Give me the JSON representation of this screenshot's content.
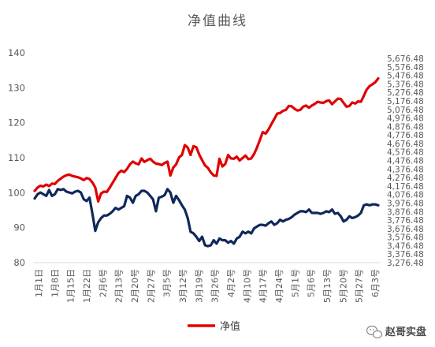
{
  "chart_data": {
    "type": "line",
    "title": "净值曲线",
    "left_axis": {
      "ylim": [
        80,
        140
      ],
      "ticks": [
        80,
        90,
        100,
        110,
        120,
        130,
        140
      ]
    },
    "right_axis": {
      "ylim": [
        3176.48,
        5776.48
      ],
      "ticks": [
        "3,276.48",
        "3,376.48",
        "3,476.48",
        "3,576.48",
        "3,676.48",
        "3,776.48",
        "3,876.48",
        "3,976.48",
        "4,076.48",
        "4,176.48",
        "4,276.48",
        "4,376.48",
        "4,476.48",
        "4,576.48",
        "4,676.48",
        "4,776.48",
        "4,876.48",
        "4,976.48",
        "5,076.48",
        "5,176.48",
        "5,276.48",
        "5,376.48",
        "5,476.48",
        "5,576.48",
        "5,676.48"
      ]
    },
    "x_tick_labels": [
      "1月1日",
      "1月8日",
      "1月15日",
      "1月22日",
      "2月6号",
      "2月13号",
      "2月20号",
      "2月27号",
      "3月5号",
      "3月12号",
      "3月19号",
      "3月26号",
      "4月2号",
      "4月10号",
      "4月17号",
      "4月24号",
      "5月1号",
      "5月6号",
      "5月13号",
      "5月20号",
      "5月27号",
      "6月3号"
    ],
    "grid": false,
    "legend_position": "bottom",
    "series": [
      {
        "name": "净值",
        "axis": "left",
        "color": "#e00000",
        "values": [
          100.5,
          101.5,
          102,
          101.8,
          102.3,
          101.9,
          102.6,
          102.5,
          103.4,
          104,
          104.6,
          105,
          105.2,
          104.8,
          104.6,
          104.4,
          104.1,
          103.6,
          104.2,
          103.9,
          102.9,
          101.5,
          97.5,
          99.8,
          100.3,
          100.2,
          101.5,
          102.8,
          104.2,
          105.6,
          106.3,
          105.9,
          106.8,
          108.1,
          108.9,
          108.4,
          108.1,
          109.8,
          108.8,
          109.3,
          109.7,
          108.9,
          108.3,
          108.2,
          107.9,
          108.5,
          108.9,
          104.9,
          107.2,
          108.1,
          110.1,
          110.8,
          113.6,
          112.9,
          110.8,
          113.3,
          113.0,
          110.9,
          109.3,
          107.8,
          107.1,
          105.8,
          104.9,
          104.8,
          109.7,
          107.5,
          108.2,
          110.8,
          109.8,
          109.7,
          110.3,
          109.2,
          109.9,
          110.6,
          109.6,
          109.8,
          111.1,
          112.9,
          115.1,
          117.3,
          116.9,
          118.1,
          119.6,
          121.1,
          122.6,
          122.8,
          123.4,
          123.7,
          124.8,
          124.7,
          124.0,
          123.5,
          123.7,
          124.6,
          124.9,
          124.3,
          124.9,
          125.4,
          126.0,
          125.8,
          125.7,
          126.2,
          126.4,
          125.3,
          126.1,
          126.9,
          126.8,
          125.7,
          124.6,
          124.8,
          125.8,
          125.5,
          126.1,
          126.0,
          127.7,
          129.5,
          130.5,
          131.0,
          131.6,
          132.7
        ]
      },
      {
        "name": "",
        "axis": "right",
        "color": "#10285a",
        "values": [
          4030,
          4080,
          4100,
          4080,
          4060,
          4130,
          4060,
          4080,
          4140,
          4130,
          4140,
          4110,
          4100,
          4090,
          4110,
          4120,
          4100,
          4020,
          4000,
          4040,
          3850,
          3650,
          3750,
          3800,
          3830,
          3830,
          3850,
          3880,
          3920,
          3900,
          3920,
          3940,
          4060,
          4040,
          3980,
          4060,
          4080,
          4120,
          4120,
          4100,
          4060,
          4020,
          3880,
          4040,
          4050,
          4070,
          4140,
          4100,
          3980,
          4060,
          4010,
          3950,
          3900,
          3800,
          3640,
          3620,
          3580,
          3530,
          3580,
          3480,
          3470,
          3480,
          3540,
          3500,
          3560,
          3540,
          3540,
          3510,
          3530,
          3500,
          3560,
          3580,
          3640,
          3620,
          3640,
          3620,
          3680,
          3700,
          3720,
          3720,
          3710,
          3740,
          3760,
          3720,
          3740,
          3780,
          3760,
          3780,
          3790,
          3810,
          3840,
          3860,
          3880,
          3880,
          3870,
          3900,
          3860,
          3860,
          3860,
          3850,
          3860,
          3880,
          3870,
          3900,
          3850,
          3860,
          3820,
          3760,
          3780,
          3820,
          3800,
          3810,
          3830,
          3860,
          3950,
          3960,
          3950,
          3960,
          3960,
          3950
        ]
      }
    ]
  },
  "legend": {
    "label": "净值"
  },
  "watermark": {
    "text": "赵哥实盘"
  }
}
